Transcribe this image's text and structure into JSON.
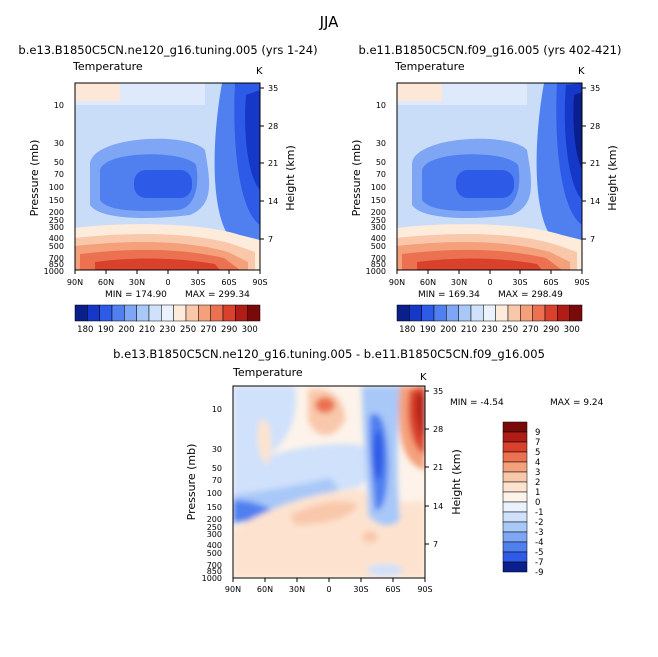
{
  "figure_title": "JJA",
  "chart_data": [
    {
      "type": "heatmap",
      "title": "b.e13.B1850C5CN.ne120_g16.tuning.005 (yrs 1-24)",
      "variable": "Temperature",
      "units": "K",
      "ylabel": "Pressure (mb)",
      "y2label": "Height (km)",
      "x_ticks": [
        "90N",
        "60N",
        "30N",
        "0",
        "30S",
        "60S",
        "90S"
      ],
      "y_ticks": [
        "10",
        "30",
        "50",
        "70",
        "100",
        "150",
        "200",
        "250",
        "300",
        "400",
        "500",
        "700",
        "850",
        "1000"
      ],
      "y2_ticks": [
        "35",
        "28",
        "21",
        "14",
        "7"
      ],
      "min_label": "MIN = 174.90",
      "max_label": "MAX = 299.34",
      "colorbar_labels": [
        "180",
        "190",
        "200",
        "210",
        "230",
        "250",
        "270",
        "290",
        "300"
      ]
    },
    {
      "type": "heatmap",
      "title": "b.e11.B1850C5CN.f09_g16.005 (yrs 402-421)",
      "variable": "Temperature",
      "units": "K",
      "ylabel": "Pressure (mb)",
      "y2label": "Height (km)",
      "x_ticks": [
        "90N",
        "60N",
        "30N",
        "0",
        "30S",
        "60S",
        "90S"
      ],
      "y_ticks": [
        "10",
        "30",
        "50",
        "70",
        "100",
        "150",
        "200",
        "250",
        "300",
        "400",
        "500",
        "700",
        "850",
        "1000"
      ],
      "y2_ticks": [
        "35",
        "28",
        "21",
        "14",
        "7"
      ],
      "min_label": "MIN = 169.34",
      "max_label": "MAX = 298.49",
      "colorbar_labels": [
        "180",
        "190",
        "200",
        "210",
        "230",
        "250",
        "270",
        "290",
        "300"
      ]
    },
    {
      "type": "heatmap",
      "title": "b.e13.B1850C5CN.ne120_g16.tuning.005 - b.e11.B1850C5CN.f09_g16.005",
      "variable": "Temperature",
      "units": "K",
      "ylabel": "Pressure (mb)",
      "y2label": "Height (km)",
      "x_ticks": [
        "90N",
        "60N",
        "30N",
        "0",
        "30S",
        "60S",
        "90S"
      ],
      "y_ticks": [
        "10",
        "30",
        "50",
        "70",
        "100",
        "150",
        "200",
        "250",
        "300",
        "400",
        "500",
        "700",
        "850",
        "1000"
      ],
      "y2_ticks": [
        "35",
        "28",
        "21",
        "14",
        "7"
      ],
      "min_label": "MIN = -4.54",
      "max_label": "MAX = 9.24",
      "colorbar_labels": [
        "9",
        "7",
        "5",
        "4",
        "3",
        "2",
        "1",
        "0",
        "-1",
        "-2",
        "-3",
        "-4",
        "-5",
        "-7",
        "-9"
      ]
    }
  ],
  "colors": {
    "abs_scale": [
      "#0a1e8c",
      "#1638c8",
      "#2d5ae6",
      "#5080f0",
      "#7ea6f4",
      "#a8c8f8",
      "#cfe1fb",
      "#eaf2fd",
      "#fdebdc",
      "#f9c8ab",
      "#f4a07a",
      "#ec7150",
      "#d9412c",
      "#b01d17",
      "#7a0a0a"
    ],
    "diff_scale": [
      "#7a0a0a",
      "#b01d17",
      "#d9412c",
      "#ec7150",
      "#f4a07a",
      "#f9c8ab",
      "#fde3cf",
      "#fdf3ea",
      "#eaf2fd",
      "#cfe1fb",
      "#a8c8f8",
      "#7ea6f4",
      "#5080f0",
      "#2d5ae6",
      "#0a1e8c"
    ]
  }
}
